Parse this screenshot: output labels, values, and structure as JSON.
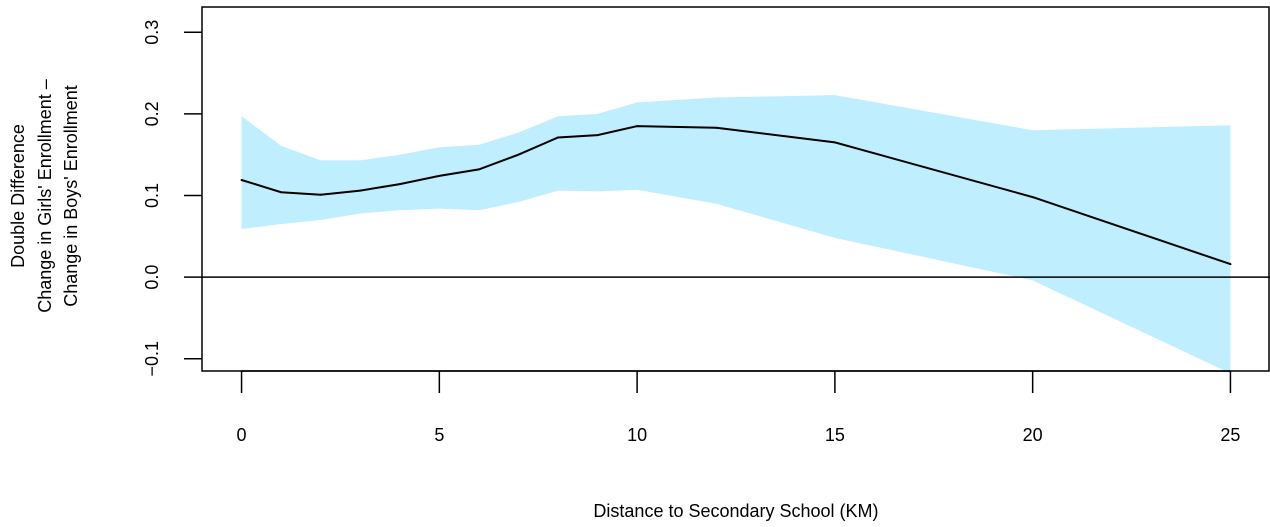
{
  "chart_data": {
    "type": "line",
    "xlabel": "Distance to Secondary School (KM)",
    "ylabel_lines": [
      "Double Difference",
      "Change in Girls' Enrollment –",
      "Change in Boys' Enrollment"
    ],
    "xlim": [
      -1,
      26
    ],
    "ylim": [
      -0.115,
      0.315
    ],
    "x_ticks": [
      0,
      5,
      10,
      15,
      20,
      25
    ],
    "x_tick_labels": [
      "0",
      "5",
      "10",
      "15",
      "20",
      "25"
    ],
    "y_ticks": [
      -0.1,
      0.0,
      0.1,
      0.2,
      0.3
    ],
    "y_tick_labels": [
      "−0.1",
      "0.0",
      "0.1",
      "0.2",
      "0.3"
    ],
    "reference_line_y": 0.0,
    "grid": false,
    "series": [
      {
        "role": "estimate",
        "color": "#000000",
        "x": [
          0,
          1,
          2,
          3,
          4,
          5,
          6,
          7,
          8,
          9,
          10,
          12,
          15,
          20,
          25
        ],
        "y": [
          0.119,
          0.104,
          0.101,
          0.106,
          0.114,
          0.124,
          0.132,
          0.15,
          0.171,
          0.174,
          0.185,
          0.183,
          0.165,
          0.098,
          0.016
        ]
      }
    ],
    "confidence_band": {
      "color": "#bfeeff",
      "x": [
        0,
        1,
        2,
        3,
        4,
        5,
        6,
        7,
        8,
        9,
        10,
        12,
        15,
        20,
        25
      ],
      "lower": [
        0.059,
        0.065,
        0.07,
        0.078,
        0.082,
        0.084,
        0.082,
        0.092,
        0.106,
        0.105,
        0.107,
        0.09,
        0.048,
        -0.004,
        -0.118
      ],
      "upper": [
        0.197,
        0.161,
        0.143,
        0.143,
        0.15,
        0.159,
        0.162,
        0.177,
        0.197,
        0.2,
        0.214,
        0.22,
        0.223,
        0.18,
        0.186
      ]
    }
  }
}
